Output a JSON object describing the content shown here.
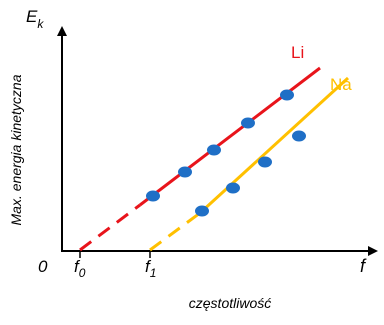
{
  "y_axis": {
    "symbol": "E",
    "subscript": "k",
    "label": "Max. energia kinetyczna"
  },
  "x_axis": {
    "symbol": "f",
    "label": "częstotliwość",
    "origin": "0"
  },
  "thresholds": [
    {
      "symbol": "f",
      "subscript": "0"
    },
    {
      "symbol": "f",
      "subscript": "1"
    }
  ],
  "lines": [
    {
      "name": "Li"
    },
    {
      "name": "Na"
    }
  ]
}
